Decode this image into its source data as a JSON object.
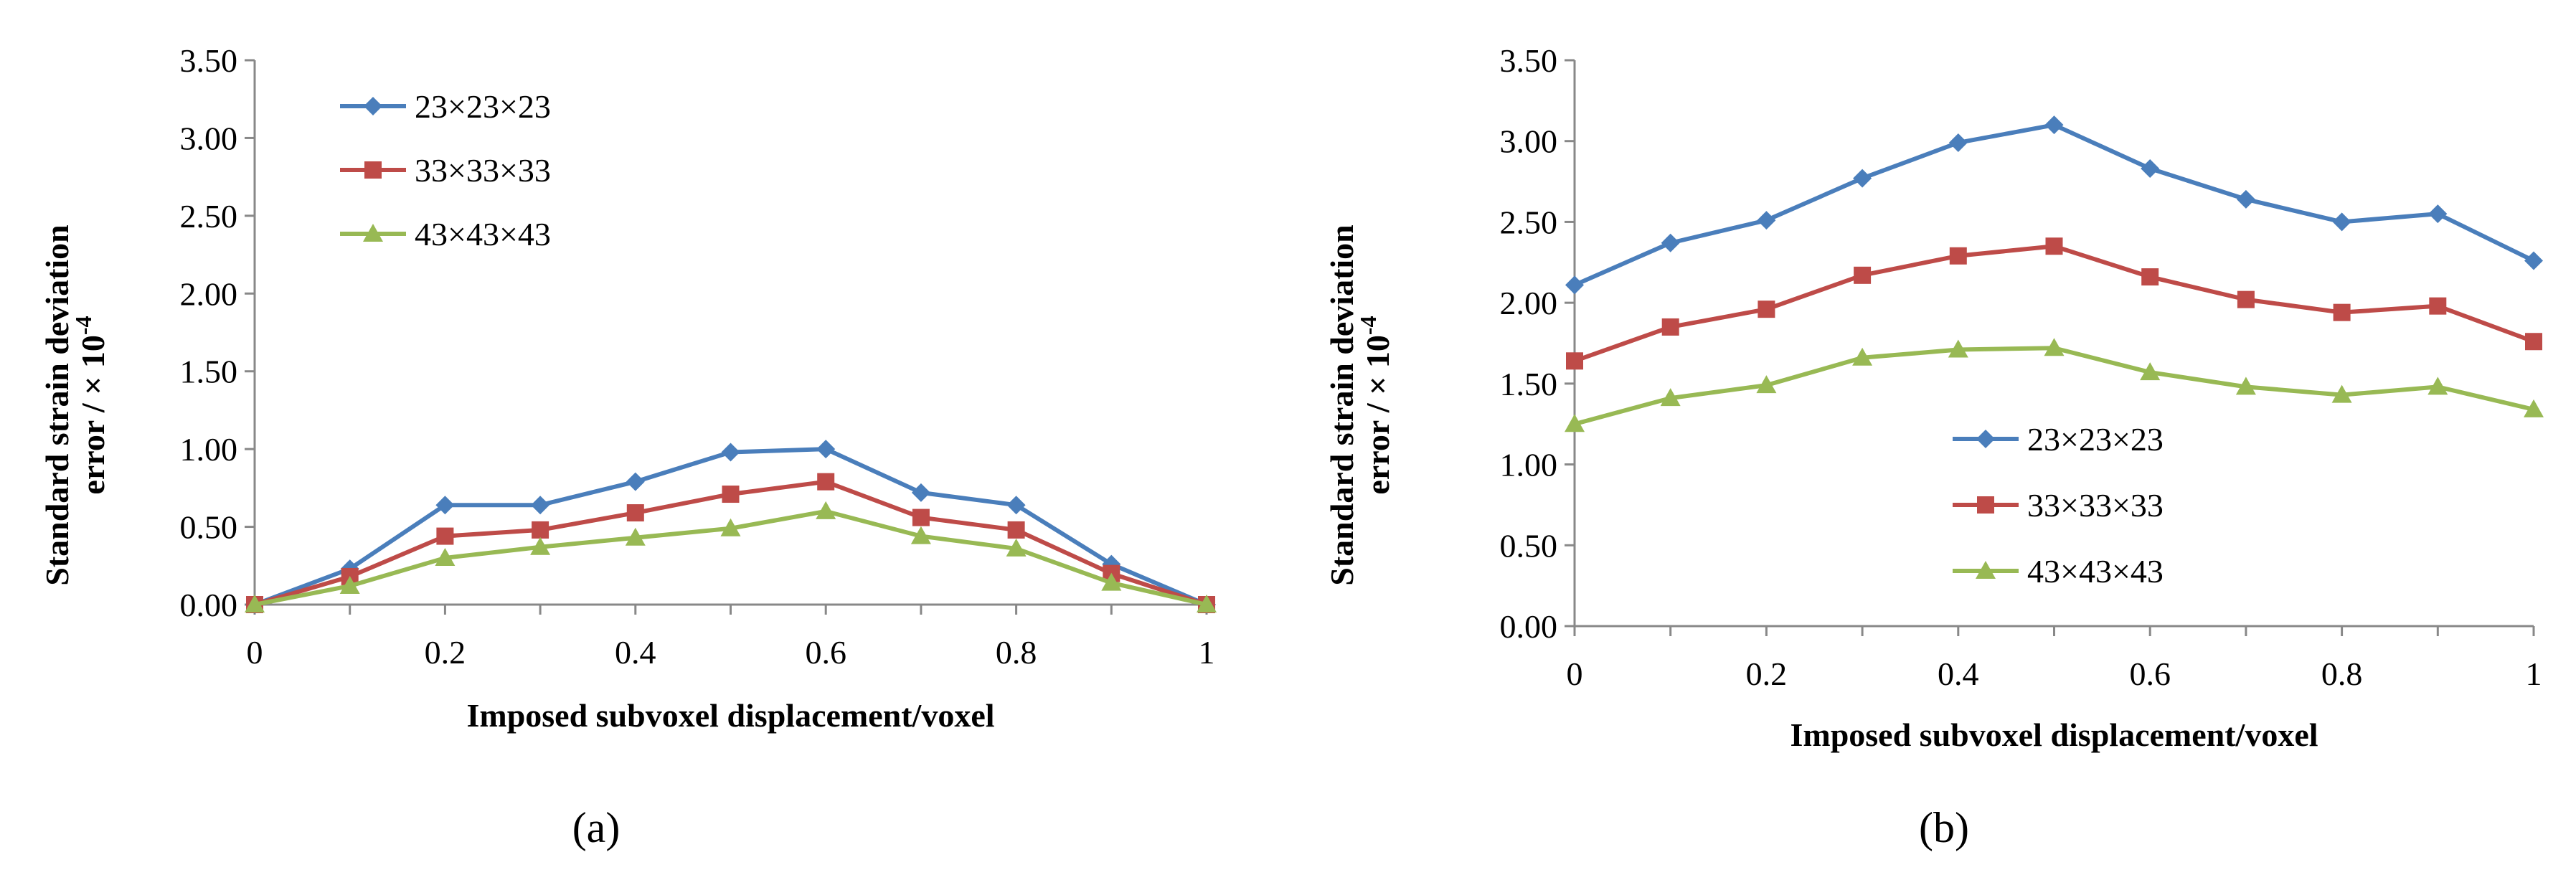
{
  "chart_data": [
    {
      "type": "line",
      "panel_label": "(a)",
      "xlabel": "Imposed subvoxel displacement/voxel",
      "ylabel_line1": "Standard strain deviation",
      "ylabel_line2": "error / × 10",
      "ylabel_exponent": "-4",
      "xlim": [
        0,
        1
      ],
      "ylim": [
        0,
        3.5
      ],
      "x_ticks": [
        0,
        0.2,
        0.4,
        0.6,
        0.8,
        1
      ],
      "x_tick_labels": [
        "0",
        "0.2",
        "0.4",
        "0.6",
        "0.8",
        "1"
      ],
      "y_ticks": [
        0,
        0.5,
        1.0,
        1.5,
        2.0,
        2.5,
        3.0,
        3.5
      ],
      "y_tick_labels": [
        "0.00",
        "0.50",
        "1.00",
        "1.50",
        "2.00",
        "2.50",
        "3.00",
        "3.50"
      ],
      "grid": false,
      "legend_position": "top-left",
      "x": [
        0,
        0.1,
        0.2,
        0.3,
        0.4,
        0.5,
        0.6,
        0.7,
        0.8,
        0.9,
        1.0
      ],
      "series": [
        {
          "name": "23×23×23",
          "color": "#4a7ebb",
          "marker": "diamond",
          "values": [
            0.0,
            0.23,
            0.64,
            0.64,
            0.79,
            0.98,
            1.0,
            0.72,
            0.64,
            0.26,
            0.0
          ]
        },
        {
          "name": "33×33×33",
          "color": "#be4b48",
          "marker": "square",
          "values": [
            0.0,
            0.18,
            0.44,
            0.48,
            0.59,
            0.71,
            0.79,
            0.56,
            0.48,
            0.2,
            0.0
          ]
        },
        {
          "name": "43×43×43",
          "color": "#98b954",
          "marker": "triangle",
          "values": [
            0.0,
            0.12,
            0.3,
            0.37,
            0.43,
            0.49,
            0.6,
            0.44,
            0.36,
            0.14,
            0.0
          ]
        }
      ]
    },
    {
      "type": "line",
      "panel_label": "(b)",
      "xlabel": "Imposed subvoxel displacement/voxel",
      "ylabel_line1": "Standard strain deviation",
      "ylabel_line2": "error / × 10",
      "ylabel_exponent": "-4",
      "xlim": [
        0,
        1
      ],
      "ylim": [
        0,
        3.5
      ],
      "x_ticks": [
        0,
        0.2,
        0.4,
        0.6,
        0.8,
        1
      ],
      "x_tick_labels": [
        "0",
        "0.2",
        "0.4",
        "0.6",
        "0.8",
        "1"
      ],
      "y_ticks": [
        0,
        0.5,
        1.0,
        1.5,
        2.0,
        2.5,
        3.0,
        3.5
      ],
      "y_tick_labels": [
        "0.00",
        "0.50",
        "1.00",
        "1.50",
        "2.00",
        "2.50",
        "3.00",
        "3.50"
      ],
      "grid": false,
      "legend_position": "center-left",
      "x": [
        0,
        0.1,
        0.2,
        0.3,
        0.4,
        0.5,
        0.6,
        0.7,
        0.8,
        0.9,
        1.0
      ],
      "series": [
        {
          "name": "23×23×23",
          "color": "#4a7ebb",
          "marker": "diamond",
          "values": [
            2.11,
            2.37,
            2.51,
            2.77,
            2.99,
            3.1,
            2.83,
            2.64,
            2.5,
            2.55,
            2.26
          ]
        },
        {
          "name": "33×33×33",
          "color": "#be4b48",
          "marker": "square",
          "values": [
            1.64,
            1.85,
            1.96,
            2.17,
            2.29,
            2.35,
            2.16,
            2.02,
            1.94,
            1.98,
            1.76
          ]
        },
        {
          "name": "43×43×43",
          "color": "#98b954",
          "marker": "triangle",
          "values": [
            1.25,
            1.41,
            1.49,
            1.66,
            1.71,
            1.72,
            1.57,
            1.48,
            1.43,
            1.48,
            1.34
          ]
        }
      ]
    }
  ]
}
